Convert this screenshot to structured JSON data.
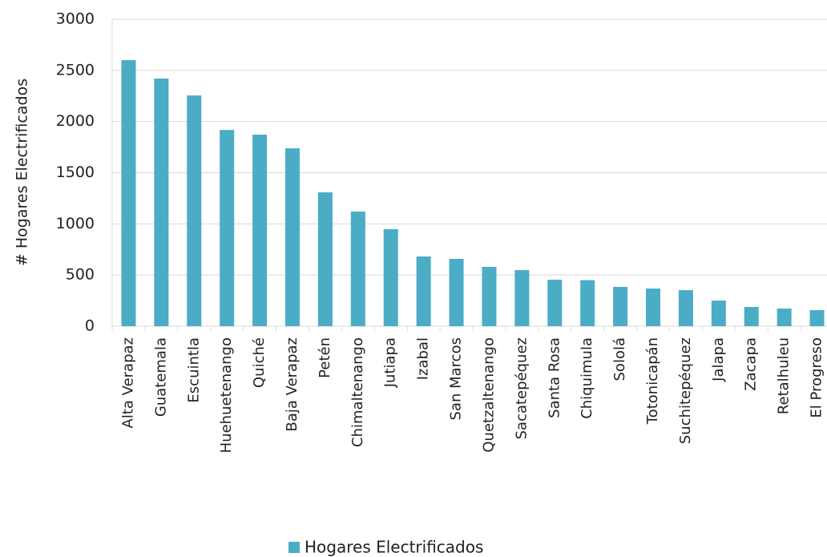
{
  "chart_data": {
    "type": "bar",
    "y_label": "# Hogares Electrificados",
    "categories": [
      "Alta Verapaz",
      "Guatemala",
      "Escuintla",
      "Huehuetenango",
      "Quiché",
      "Baja Verapaz",
      "Petén",
      "Chimaltenango",
      "Jutiapa",
      "Izabal",
      "San Marcos",
      "Quetzaltenango",
      "Sacatepéquez",
      "Santa Rosa",
      "Chiquimula",
      "Sololá",
      "Totonicapán",
      "Suchitepéquez",
      "Jalapa",
      "Zacapa",
      "Retalhuleu",
      "El Progreso"
    ],
    "series": [
      {
        "name": "Hogares Electrificados",
        "color": "#4bacc6",
        "values": [
          2600,
          2420,
          2255,
          1918,
          1872,
          1738,
          1308,
          1120,
          948,
          681,
          658,
          580,
          548,
          454,
          450,
          384,
          368,
          352,
          250,
          188,
          172,
          157
        ]
      }
    ],
    "ylim": [
      0,
      3000
    ],
    "yticks": [
      0,
      500,
      1000,
      1500,
      2000,
      2500,
      3000
    ],
    "grid": true,
    "legend": "bottom"
  }
}
